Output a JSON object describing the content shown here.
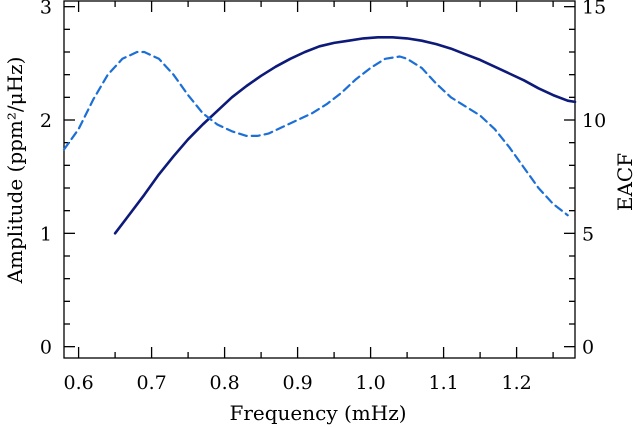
{
  "chart_data": {
    "type": "line",
    "title": "",
    "xlabel": "Frequency (mHz)",
    "ylabel_left": "Amplitude (ppm²/μHz)",
    "ylabel_right": "EACF",
    "xlim": [
      0.58,
      1.28
    ],
    "ylim_left": [
      -0.1,
      3.05
    ],
    "ylim_right": [
      -0.5,
      15.25
    ],
    "x_ticks": [
      "0.6",
      "0.7",
      "0.8",
      "0.9",
      "1.0",
      "1.1",
      "1.2"
    ],
    "y_ticks_left": [
      "0",
      "1",
      "2",
      "3"
    ],
    "y_ticks_right": [
      "0",
      "5",
      "10",
      "15"
    ],
    "grid": false,
    "legend": "none",
    "series": [
      {
        "style": "solid",
        "axis": "left",
        "color": "#0d1a7a",
        "x": [
          0.65,
          0.67,
          0.69,
          0.71,
          0.73,
          0.75,
          0.77,
          0.79,
          0.81,
          0.83,
          0.85,
          0.87,
          0.89,
          0.91,
          0.93,
          0.95,
          0.97,
          0.99,
          1.01,
          1.03,
          1.05,
          1.07,
          1.09,
          1.11,
          1.13,
          1.15,
          1.17,
          1.19,
          1.21,
          1.23,
          1.25,
          1.27,
          1.28
        ],
        "y": [
          1.0,
          1.17,
          1.34,
          1.52,
          1.68,
          1.83,
          1.96,
          2.08,
          2.2,
          2.3,
          2.39,
          2.47,
          2.54,
          2.6,
          2.65,
          2.68,
          2.7,
          2.72,
          2.73,
          2.73,
          2.72,
          2.7,
          2.67,
          2.63,
          2.58,
          2.53,
          2.47,
          2.41,
          2.35,
          2.28,
          2.22,
          2.17,
          2.16
        ]
      },
      {
        "style": "dashed",
        "axis": "right",
        "color": "#1c6fd6",
        "x": [
          0.58,
          0.6,
          0.62,
          0.64,
          0.66,
          0.68,
          0.69,
          0.71,
          0.73,
          0.75,
          0.77,
          0.79,
          0.81,
          0.83,
          0.845,
          0.86,
          0.88,
          0.9,
          0.92,
          0.94,
          0.96,
          0.98,
          1.0,
          1.02,
          1.04,
          1.05,
          1.07,
          1.09,
          1.11,
          1.13,
          1.15,
          1.17,
          1.19,
          1.21,
          1.23,
          1.25,
          1.27
        ],
        "y": [
          8.7,
          9.6,
          10.9,
          12.0,
          12.7,
          13.0,
          13.0,
          12.7,
          12.0,
          11.1,
          10.3,
          9.8,
          9.5,
          9.3,
          9.3,
          9.4,
          9.7,
          10.0,
          10.3,
          10.7,
          11.2,
          11.8,
          12.3,
          12.7,
          12.8,
          12.7,
          12.3,
          11.6,
          11.0,
          10.6,
          10.2,
          9.6,
          8.8,
          7.9,
          7.0,
          6.3,
          5.8
        ]
      }
    ]
  }
}
